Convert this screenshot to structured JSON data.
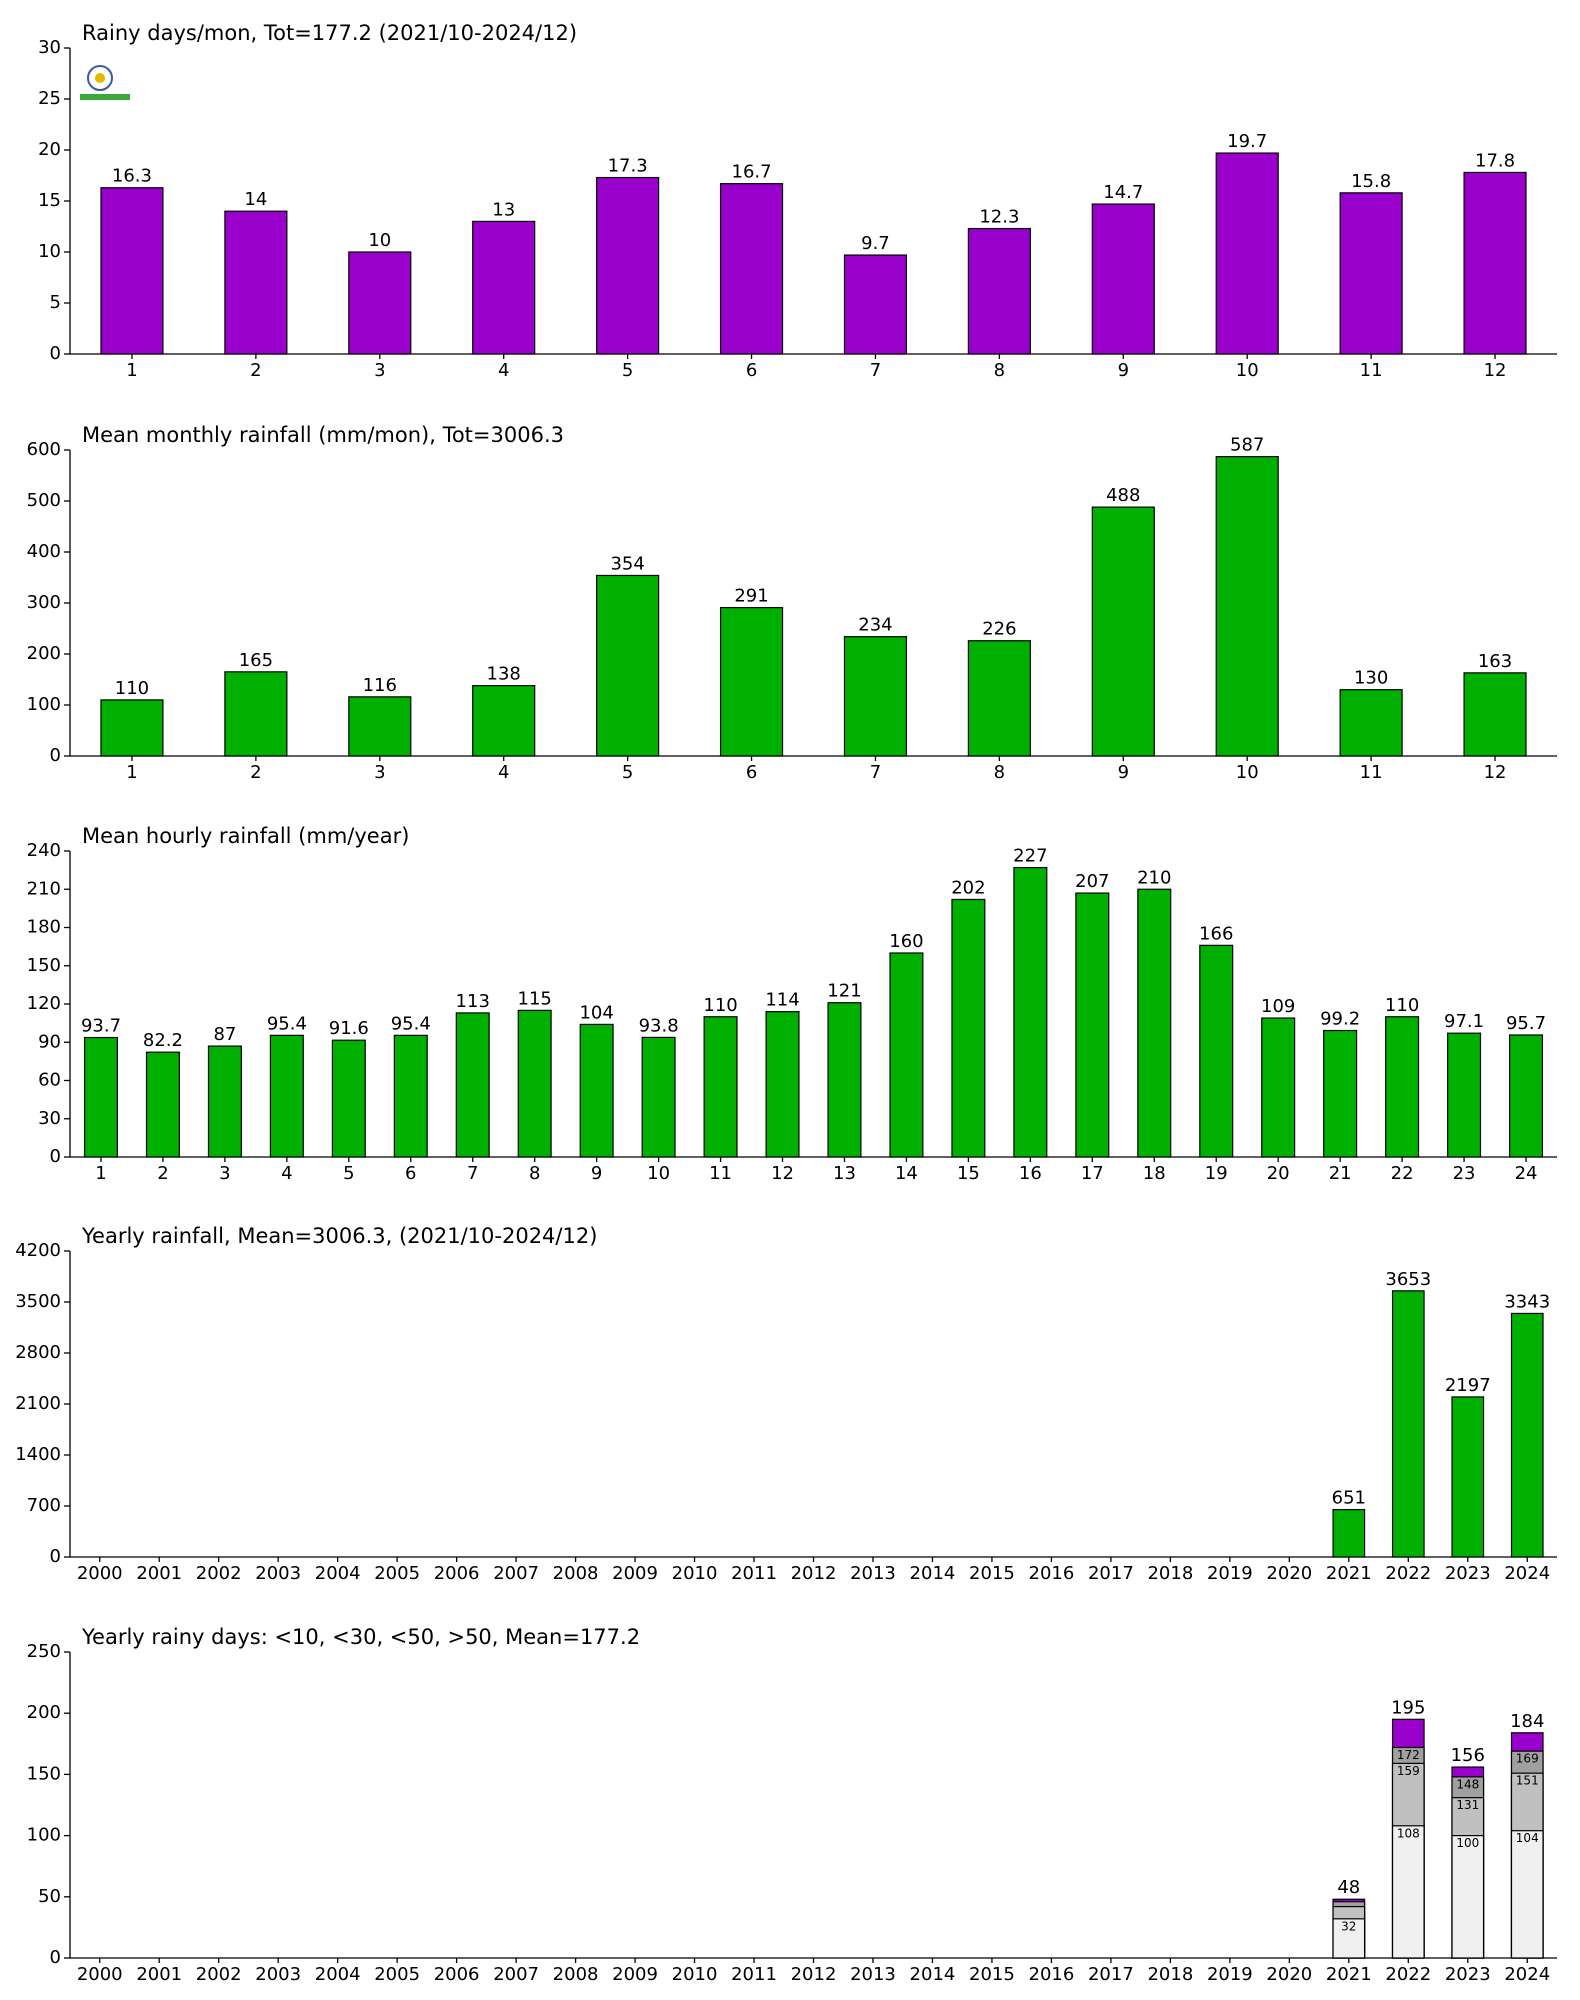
{
  "chart_data": [
    {
      "type": "bar",
      "title": "Rainy days/mon, Tot=177.2 (2021/10-2024/12)",
      "categories": [
        "1",
        "2",
        "3",
        "4",
        "5",
        "6",
        "7",
        "8",
        "9",
        "10",
        "11",
        "12"
      ],
      "values": [
        16.3,
        14,
        10,
        13,
        17.3,
        16.7,
        9.7,
        12.3,
        14.7,
        19.7,
        15.8,
        17.8
      ],
      "color": "#9900cc",
      "ylim": [
        0,
        30
      ],
      "yticks": [
        0,
        5,
        10,
        15,
        20,
        25,
        30
      ]
    },
    {
      "type": "bar",
      "title": "Mean monthly rainfall (mm/mon), Tot=3006.3",
      "categories": [
        "1",
        "2",
        "3",
        "4",
        "5",
        "6",
        "7",
        "8",
        "9",
        "10",
        "11",
        "12"
      ],
      "values": [
        110,
        165,
        116,
        138,
        354,
        291,
        234,
        226,
        488,
        587,
        130,
        163
      ],
      "color": "#00b000",
      "ylim": [
        0,
        600
      ],
      "yticks": [
        0,
        100,
        200,
        300,
        400,
        500,
        600
      ]
    },
    {
      "type": "bar",
      "title": "Mean hourly rainfall (mm/year)",
      "categories": [
        "1",
        "2",
        "3",
        "4",
        "5",
        "6",
        "7",
        "8",
        "9",
        "10",
        "11",
        "12",
        "13",
        "14",
        "15",
        "16",
        "17",
        "18",
        "19",
        "20",
        "21",
        "22",
        "23",
        "24"
      ],
      "values": [
        93.7,
        82.2,
        87,
        95.4,
        91.6,
        95.4,
        113,
        115,
        104,
        93.8,
        110,
        114,
        121,
        160,
        202,
        227,
        207,
        210,
        166,
        109,
        99.2,
        110,
        97.1,
        95.7
      ],
      "color": "#00b000",
      "ylim": [
        0,
        240
      ],
      "yticks": [
        0,
        30,
        60,
        90,
        120,
        150,
        180,
        210,
        240
      ]
    },
    {
      "type": "bar",
      "title": "Yearly rainfall, Mean=3006.3, (2021/10-2024/12)",
      "categories": [
        "2000",
        "2001",
        "2002",
        "2003",
        "2004",
        "2005",
        "2006",
        "2007",
        "2008",
        "2009",
        "2010",
        "2011",
        "2012",
        "2013",
        "2014",
        "2015",
        "2016",
        "2017",
        "2018",
        "2019",
        "2020",
        "2021",
        "2022",
        "2023",
        "2024"
      ],
      "values": [
        null,
        null,
        null,
        null,
        null,
        null,
        null,
        null,
        null,
        null,
        null,
        null,
        null,
        null,
        null,
        null,
        null,
        null,
        null,
        null,
        null,
        651,
        3653,
        2197,
        3343
      ],
      "color": "#00b000",
      "ylim": [
        0,
        4200
      ],
      "yticks": [
        0,
        700,
        1400,
        2100,
        2800,
        3500,
        4200
      ]
    },
    {
      "type": "bar",
      "title": "Yearly rainy days: <10, <30, <50, >50, Mean=177.2",
      "categories": [
        "2000",
        "2001",
        "2002",
        "2003",
        "2004",
        "2005",
        "2006",
        "2007",
        "2008",
        "2009",
        "2010",
        "2011",
        "2012",
        "2013",
        "2014",
        "2015",
        "2016",
        "2017",
        "2018",
        "2019",
        "2020",
        "2021",
        "2022",
        "2023",
        "2024"
      ],
      "series": [
        {
          "color": "#f0f0f0",
          "values": [
            null,
            null,
            null,
            null,
            null,
            null,
            null,
            null,
            null,
            null,
            null,
            null,
            null,
            null,
            null,
            null,
            null,
            null,
            null,
            null,
            null,
            32,
            108,
            100,
            104
          ]
        },
        {
          "color": "#c0c0c0",
          "values": [
            null,
            null,
            null,
            null,
            null,
            null,
            null,
            null,
            null,
            null,
            null,
            null,
            null,
            null,
            null,
            null,
            null,
            null,
            null,
            null,
            null,
            42,
            159,
            131,
            151
          ]
        },
        {
          "color": "#a0a0a0",
          "values": [
            null,
            null,
            null,
            null,
            null,
            null,
            null,
            null,
            null,
            null,
            null,
            null,
            null,
            null,
            null,
            null,
            null,
            null,
            null,
            null,
            null,
            46,
            172,
            148,
            169
          ]
        },
        {
          "color": "#9900cc",
          "values": [
            null,
            null,
            null,
            null,
            null,
            null,
            null,
            null,
            null,
            null,
            null,
            null,
            null,
            null,
            null,
            null,
            null,
            null,
            null,
            null,
            null,
            48,
            195,
            156,
            184
          ]
        }
      ],
      "ylim": [
        0,
        250
      ],
      "yticks": [
        0,
        50,
        100,
        150,
        200,
        250
      ]
    }
  ]
}
